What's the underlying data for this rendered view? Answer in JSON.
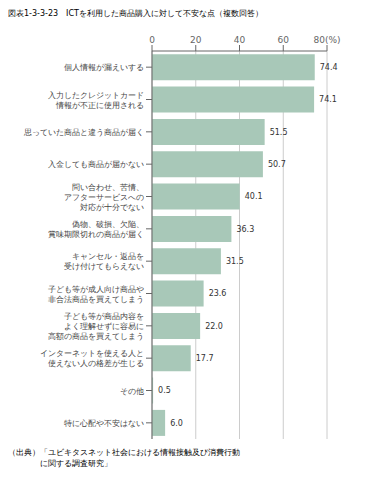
{
  "chart_data": {
    "type": "bar",
    "title": "図表1-3-3-23　ICTを利用した商品購入に対して不安な点（複数回答）",
    "orientation": "horizontal",
    "categories": [
      "個人情報が漏えいする",
      "入力したクレジットカード\n情報が不正に使用される",
      "思っていた商品と違う商品が届く",
      "入金しても商品が届かない",
      "問い合わせ、苦情、\nアフターサービスへの\n対応が十分でない",
      "偽物、破損、欠陥、\n賞味期限切れの商品が届く",
      "キャンセル・返品を\n受け付けてもらえない",
      "子ども等が成人向け商品や\n非合法商品を買えてしまう",
      "子ども等が商品内容を\nよく理解せずに容易に\n高額の商品を買えてしまう",
      "インターネットを使える人と\n使えない人の格差が生じる",
      "その他",
      "特に心配や不安はない"
    ],
    "values": [
      74.4,
      74.1,
      51.5,
      50.7,
      40.1,
      36.3,
      31.5,
      23.6,
      22.0,
      17.7,
      0.5,
      6.0
    ],
    "value_labels": [
      "74.4",
      "74.1",
      "51.5",
      "50.7",
      "40.1",
      "36.3",
      "31.5",
      "23.6",
      "22.0",
      "17.7",
      "0.5",
      "6.0"
    ],
    "data_labels": true,
    "color": "#a8c8b8",
    "xlim": [
      0,
      80
    ],
    "xticks": [
      0,
      20,
      40,
      60,
      {
        "value": 80,
        "label": "80(%)"
      }
    ],
    "grid": true,
    "annotations": [
      "（出典）「ユビキタスネット社会における情報接触及び消費行動",
      "　　　　に関する調査研究」"
    ]
  }
}
